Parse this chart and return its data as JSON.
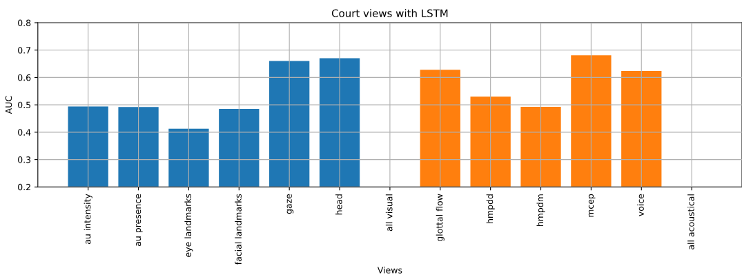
{
  "chart_data": {
    "type": "bar",
    "title": "Court views with LSTM",
    "xlabel": "Views",
    "ylabel": "AUC",
    "categories": [
      "au intensity",
      "au presence",
      "eye landmarks",
      "facial landmarks",
      "gaze",
      "head",
      "all visual",
      "glottal flow",
      "hmpdd",
      "hmpdm",
      "mcep",
      "voice",
      "all acoustical"
    ],
    "values": [
      0.494,
      0.492,
      0.413,
      0.485,
      0.66,
      0.67,
      null,
      0.628,
      0.53,
      0.493,
      0.681,
      0.624,
      null
    ],
    "colors": [
      "#1f77b4",
      "#1f77b4",
      "#1f77b4",
      "#1f77b4",
      "#1f77b4",
      "#1f77b4",
      "#1f77b4",
      "#ff7f0e",
      "#ff7f0e",
      "#ff7f0e",
      "#ff7f0e",
      "#ff7f0e",
      "#ff7f0e"
    ],
    "ylim": [
      0.2,
      0.8
    ],
    "yticks": [
      0.2,
      0.3,
      0.4,
      0.5,
      0.6,
      0.7,
      0.8
    ],
    "grid": true
  }
}
